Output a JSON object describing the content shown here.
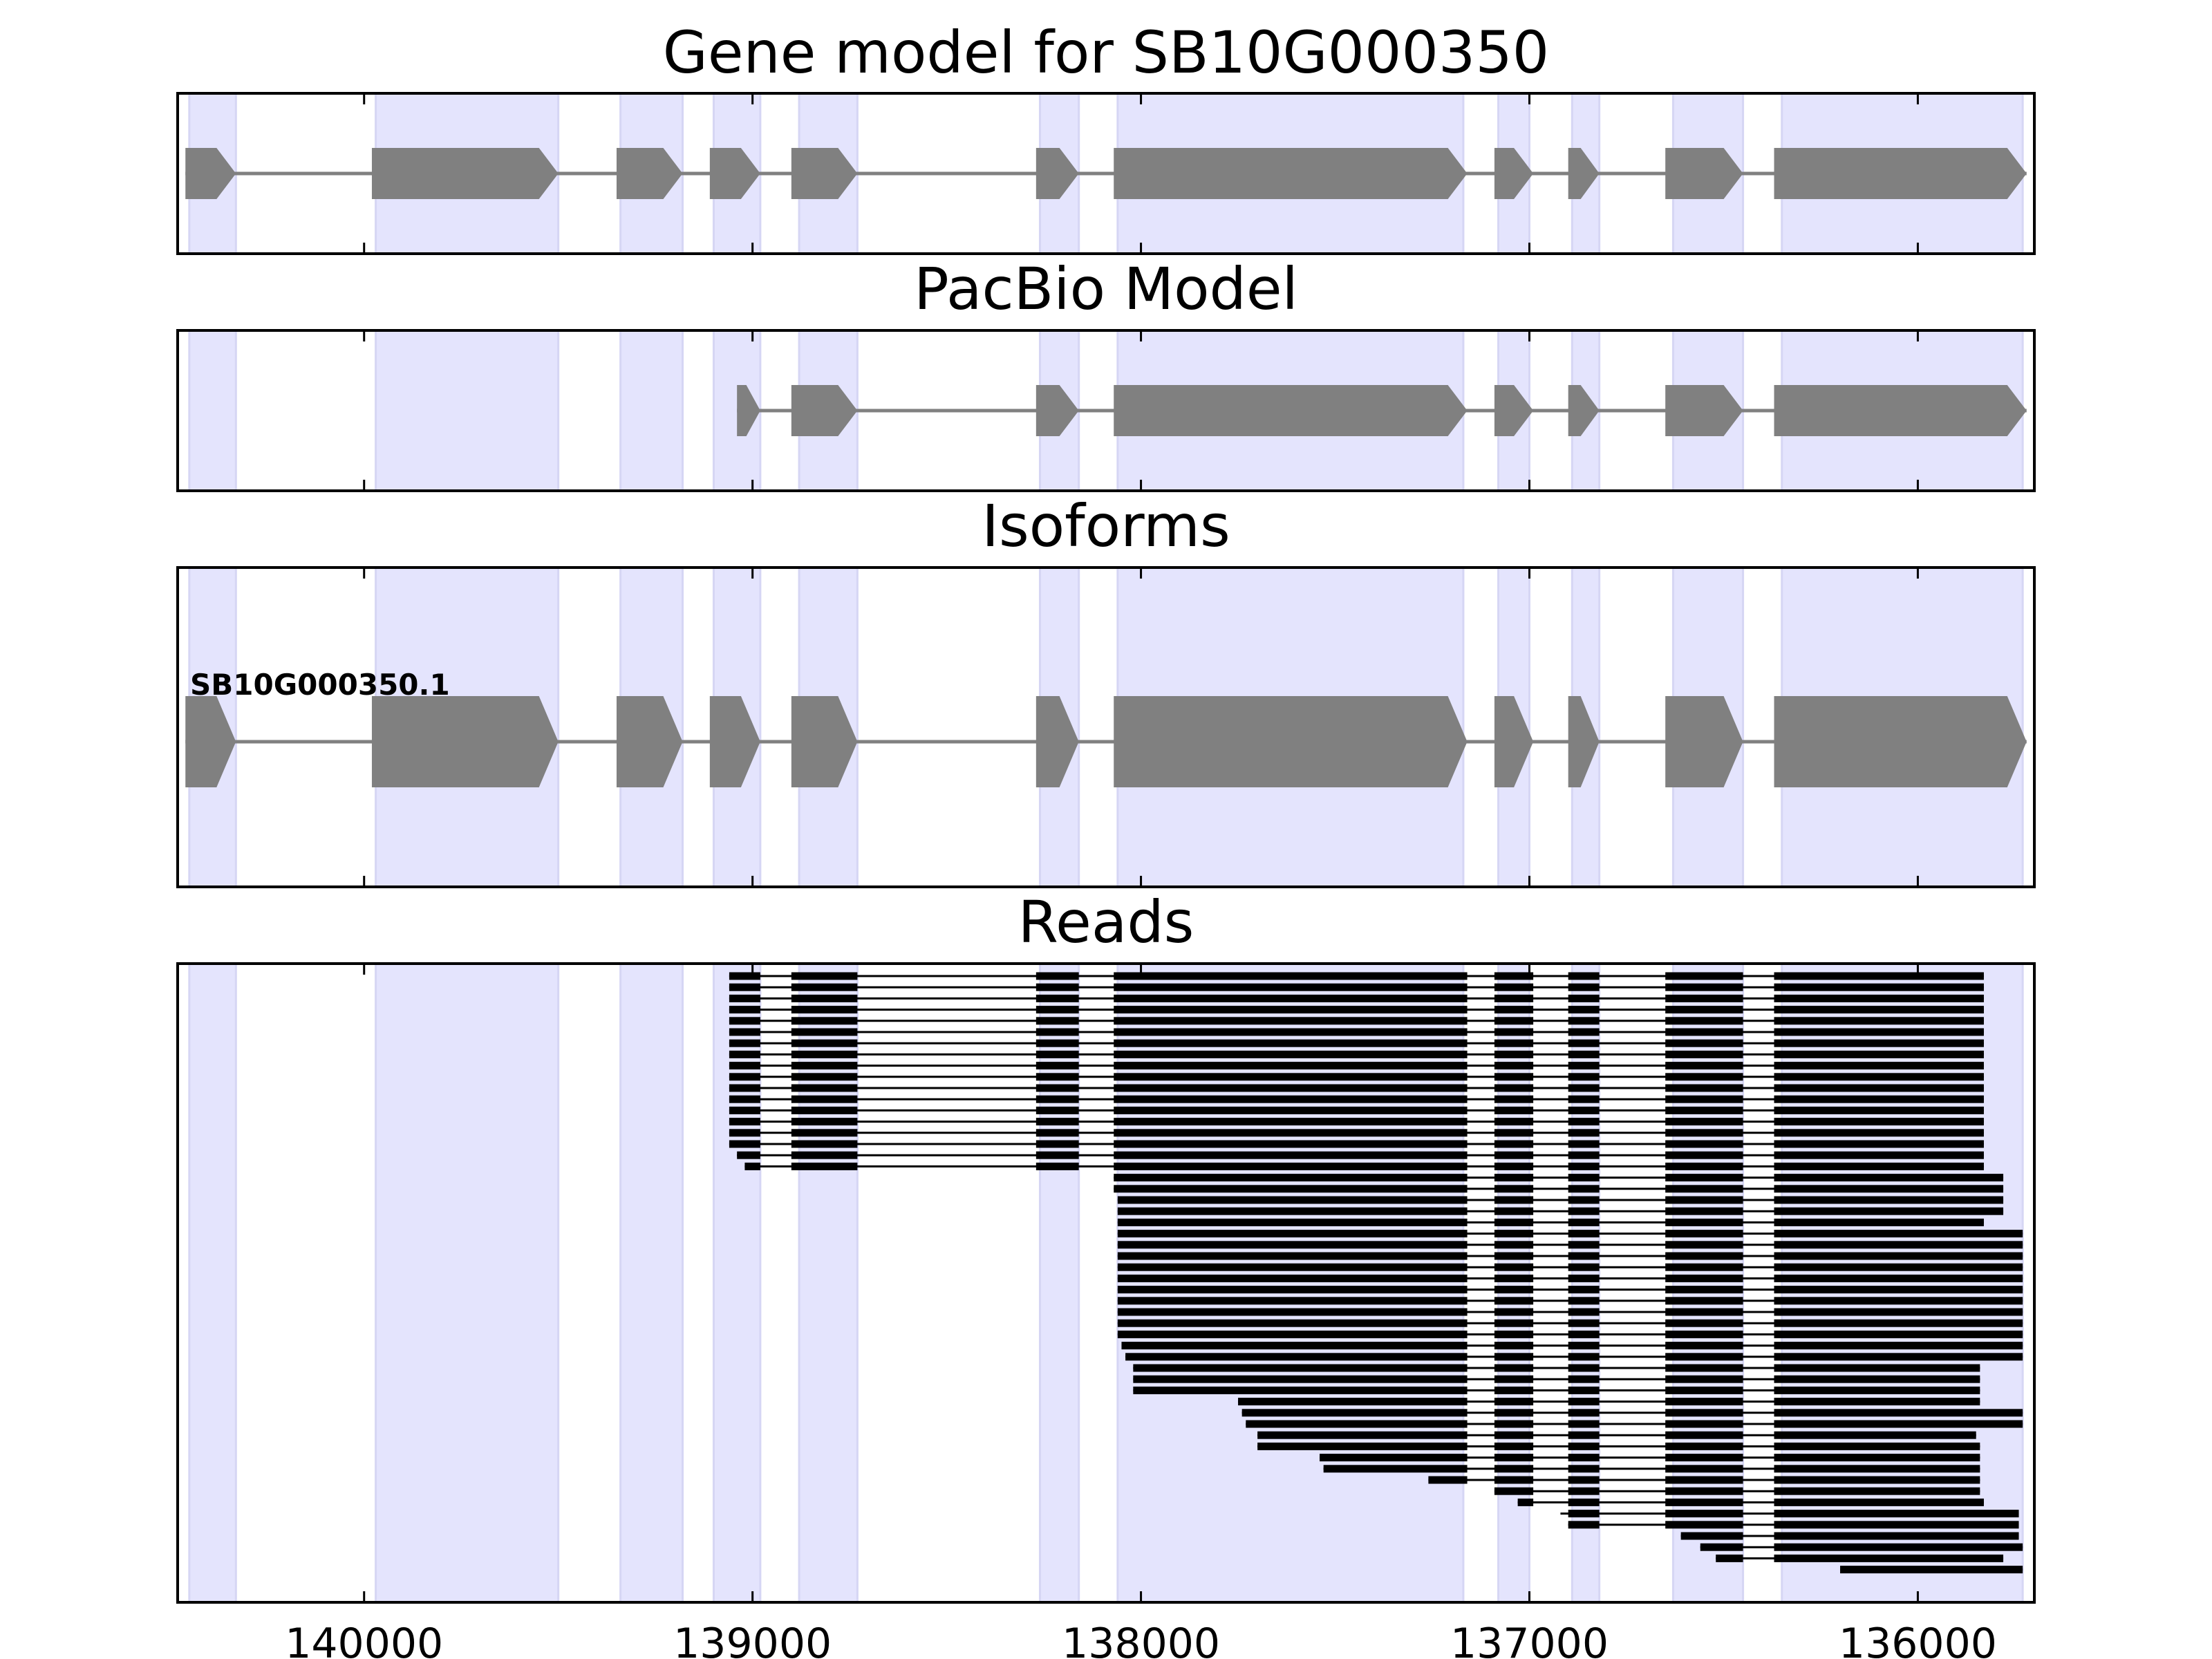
{
  "chart_data": {
    "type": "gene-track",
    "x_reversed": true,
    "xlim": [
      140480,
      135700
    ],
    "xticks": [
      140000,
      139000,
      138000,
      137000,
      136000
    ],
    "xtick_labels": [
      "140000",
      "139000",
      "138000",
      "137000",
      "136000"
    ],
    "colors": {
      "exon_fill": "#808080",
      "intron_line": "#808080",
      "highlight": "#e4e4fd",
      "read": "#000000",
      "frame": "#000000"
    },
    "highlight_regions": [
      [
        140450,
        140330
      ],
      [
        139970,
        139500
      ],
      [
        139340,
        139180
      ],
      [
        139100,
        138980
      ],
      [
        138880,
        138730
      ],
      [
        138260,
        138160
      ],
      [
        138060,
        137170
      ],
      [
        137080,
        137000
      ],
      [
        136890,
        136820
      ],
      [
        136630,
        136450
      ],
      [
        136350,
        135730
      ]
    ],
    "panels": [
      {
        "title": "Gene model for SB10G000350",
        "exons": [
          [
            140460,
            140330
          ],
          [
            139980,
            139500
          ],
          [
            139350,
            139180
          ],
          [
            139110,
            138980
          ],
          [
            138900,
            138730
          ],
          [
            138270,
            138160
          ],
          [
            138070,
            137160
          ],
          [
            137090,
            136990
          ],
          [
            136900,
            136820
          ],
          [
            136650,
            136450
          ],
          [
            136370,
            135720
          ]
        ]
      },
      {
        "title": "PacBio Model",
        "exons": [
          [
            139040,
            138980
          ],
          [
            138900,
            138730
          ],
          [
            138270,
            138160
          ],
          [
            138070,
            137160
          ],
          [
            137090,
            136990
          ],
          [
            136900,
            136820
          ],
          [
            136650,
            136450
          ],
          [
            136370,
            135720
          ]
        ]
      },
      {
        "title": "Isoforms",
        "isoforms": [
          {
            "label": "SB10G000350.1",
            "exons": [
              [
                140460,
                140330
              ],
              [
                139980,
                139500
              ],
              [
                139350,
                139180
              ],
              [
                139110,
                138980
              ],
              [
                138900,
                138730
              ],
              [
                138270,
                138160
              ],
              [
                138070,
                137160
              ],
              [
                137090,
                136990
              ],
              [
                136900,
                136820
              ],
              [
                136650,
                136450
              ],
              [
                136370,
                135720
              ]
            ]
          }
        ]
      },
      {
        "title": "Reads",
        "reads": [
          [
            139060,
            135830
          ],
          [
            139060,
            135830
          ],
          [
            139060,
            135830
          ],
          [
            139060,
            135830
          ],
          [
            139060,
            135830
          ],
          [
            139060,
            135830
          ],
          [
            139060,
            135830
          ],
          [
            139060,
            135830
          ],
          [
            139060,
            135830
          ],
          [
            139060,
            135830
          ],
          [
            139060,
            135830
          ],
          [
            139060,
            135830
          ],
          [
            139060,
            135830
          ],
          [
            139060,
            135830
          ],
          [
            139060,
            135830
          ],
          [
            139060,
            135830
          ],
          [
            139040,
            135830
          ],
          [
            139020,
            135830
          ],
          [
            138070,
            135780
          ],
          [
            138070,
            135780
          ],
          [
            138060,
            135780
          ],
          [
            138060,
            135780
          ],
          [
            138060,
            135830
          ],
          [
            138060,
            135730
          ],
          [
            138060,
            135730
          ],
          [
            138060,
            135730
          ],
          [
            138060,
            135730
          ],
          [
            138060,
            135730
          ],
          [
            138060,
            135730
          ],
          [
            138060,
            135730
          ],
          [
            138060,
            135730
          ],
          [
            138060,
            135730
          ],
          [
            138060,
            135730
          ],
          [
            138050,
            135730
          ],
          [
            138040,
            135730
          ],
          [
            138020,
            135840
          ],
          [
            138020,
            135840
          ],
          [
            138020,
            135840
          ],
          [
            137750,
            135840
          ],
          [
            137740,
            135730
          ],
          [
            137730,
            135730
          ],
          [
            137700,
            135850
          ],
          [
            137700,
            135840
          ],
          [
            137540,
            135840
          ],
          [
            137530,
            135840
          ],
          [
            137260,
            135840
          ],
          [
            137090,
            135840
          ],
          [
            137030,
            135830
          ],
          [
            136920,
            135740
          ],
          [
            136900,
            135740
          ],
          [
            136610,
            135740
          ],
          [
            136560,
            135730
          ],
          [
            136520,
            135780
          ],
          [
            136200,
            135730
          ]
        ]
      }
    ]
  }
}
